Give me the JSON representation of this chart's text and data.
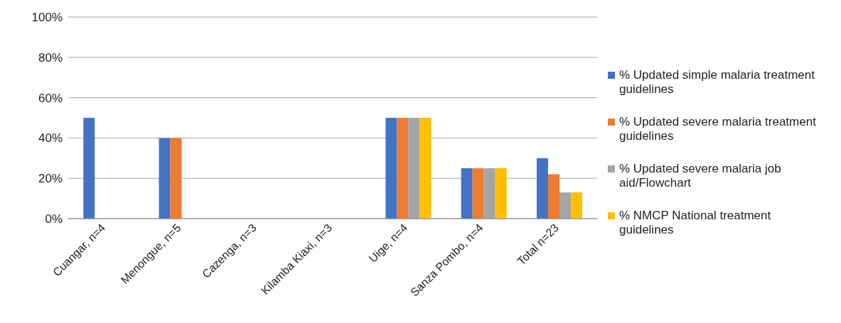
{
  "chart_data": {
    "type": "bar",
    "categories": [
      "Cuangar, n=4",
      "Menongue, n=5",
      "Cazenga, n=3",
      "Kilamba Kiaxi, n=3",
      "Uige, n=4",
      "Sanza Pombo, n=4",
      "Total n=23"
    ],
    "series": [
      {
        "name": "% Updated simple malaria treatment guidelines",
        "color": "#4472c4",
        "values": [
          50,
          40,
          0,
          0,
          50,
          25,
          30
        ]
      },
      {
        "name": "% Updated severe malaria treatment guidelines",
        "color": "#ed7d31",
        "values": [
          0,
          40,
          0,
          0,
          50,
          25,
          22
        ]
      },
      {
        "name": "% Updated severe malaria job aid/Flowchart",
        "color": "#a5a5a5",
        "values": [
          0,
          0,
          0,
          0,
          50,
          25,
          13
        ]
      },
      {
        "name": "% NMCP National treatment guidelines",
        "color": "#ffc000",
        "values": [
          0,
          0,
          0,
          0,
          50,
          25,
          13
        ]
      }
    ],
    "ylim": [
      0,
      100
    ],
    "yticks": [
      {
        "value": 0,
        "label": "0%"
      },
      {
        "value": 20,
        "label": "20%"
      },
      {
        "value": 40,
        "label": "40%"
      },
      {
        "value": 60,
        "label": "60%"
      },
      {
        "value": 80,
        "label": "80%"
      },
      {
        "value": 100,
        "label": "100%"
      }
    ],
    "grid": "y",
    "legend": "right"
  }
}
